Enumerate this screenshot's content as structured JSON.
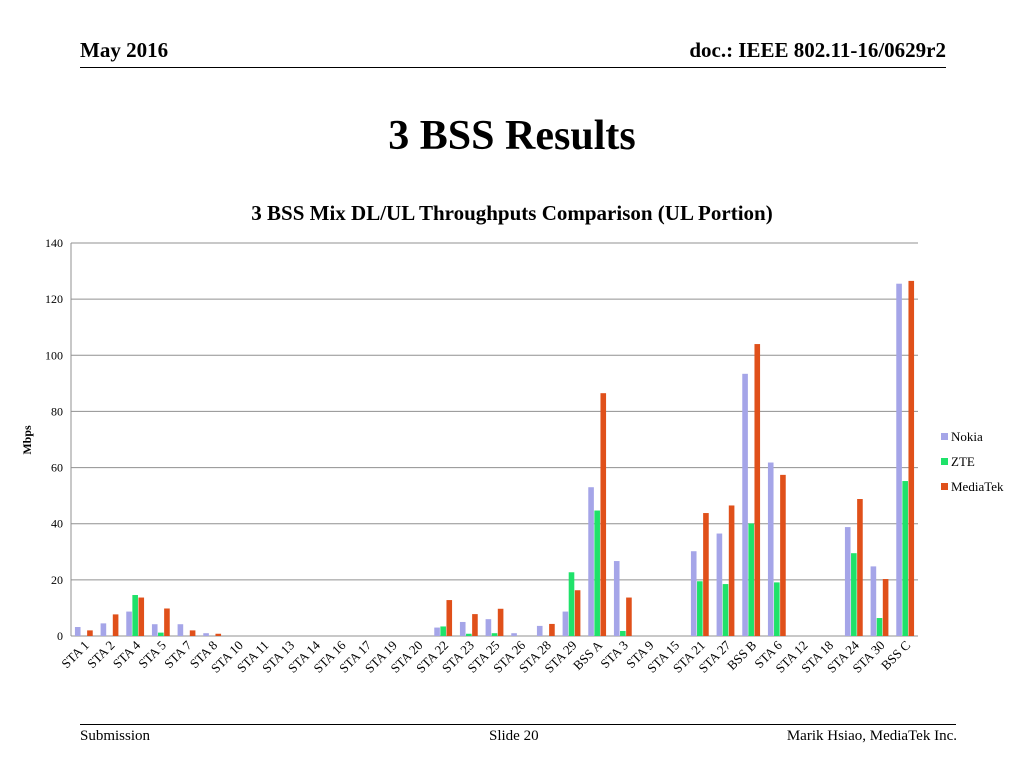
{
  "header": {
    "date": "May 2016",
    "doc": "doc.: IEEE 802.11-16/0629r2"
  },
  "slide": {
    "title": "3 BSS Results"
  },
  "footer": {
    "left": "Submission",
    "center": "Slide 20",
    "right": "Marik Hsiao, MediaTek Inc."
  },
  "colors": {
    "Nokia": "#a5a5e8",
    "ZTE": "#1fe26a",
    "MediaTek": "#e0501a",
    "grid": "#909090"
  },
  "chart_data": {
    "type": "bar",
    "title": "3 BSS Mix DL/UL Throughputs Comparison (UL Portion)",
    "xlabel": "",
    "ylabel": "Mbps",
    "ylim": [
      0,
      140
    ],
    "yticks": [
      0,
      20,
      40,
      60,
      80,
      100,
      120,
      140
    ],
    "grid": true,
    "legend_position": "right",
    "categories": [
      "STA 1",
      "STA 2",
      "STA 4",
      "STA 5",
      "STA 7",
      "STA 8",
      "STA 10",
      "STA 11",
      "STA 13",
      "STA 14",
      "STA 16",
      "STA 17",
      "STA 19",
      "STA 20",
      "STA 22",
      "STA 23",
      "STA 25",
      "STA 26",
      "STA 28",
      "STA 29",
      "BSS A",
      "STA 3",
      "STA 9",
      "STA 15",
      "STA 21",
      "STA 27",
      "BSS B",
      "STA 6",
      "STA 12",
      "STA 18",
      "STA 24",
      "STA 30",
      "BSS C"
    ],
    "series": [
      {
        "name": "Nokia",
        "values": [
          3.2,
          4.5,
          8.7,
          4.2,
          4.2,
          1.0,
          0,
          0,
          0,
          0,
          0,
          0,
          0,
          0,
          3.0,
          5.0,
          6.0,
          1.0,
          3.6,
          8.7,
          53,
          26.7,
          0,
          0,
          30.2,
          36.5,
          93.4,
          61.8,
          0,
          0,
          38.8,
          24.8,
          125.5
        ]
      },
      {
        "name": "ZTE",
        "values": [
          0,
          0,
          14.6,
          1.2,
          0,
          0,
          0,
          0,
          0,
          0,
          0,
          0,
          0,
          0,
          3.4,
          0.8,
          1.0,
          0,
          0,
          22.7,
          44.7,
          1.8,
          0,
          0,
          19.5,
          18.5,
          40.1,
          19.1,
          0,
          0,
          29.5,
          6.4,
          55.2
        ]
      },
      {
        "name": "MediaTek",
        "values": [
          2.0,
          7.7,
          13.7,
          9.8,
          2.0,
          0.8,
          0,
          0,
          0,
          0,
          0,
          0,
          0,
          0,
          12.8,
          7.8,
          9.7,
          0,
          4.3,
          16.3,
          86.5,
          13.7,
          0,
          0,
          43.8,
          46.5,
          104.0,
          57.4,
          0,
          0,
          48.8,
          20.3,
          126.5
        ]
      }
    ]
  }
}
